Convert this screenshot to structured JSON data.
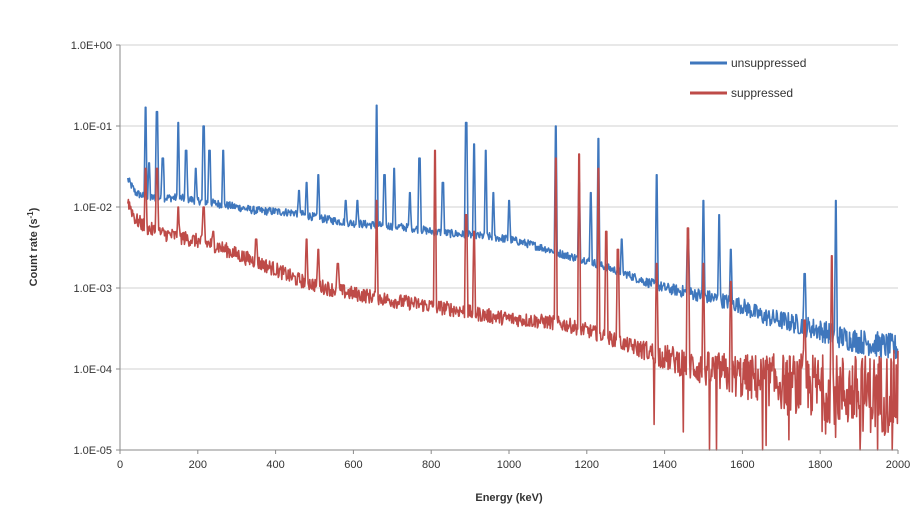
{
  "chart_data": {
    "type": "line",
    "title": "",
    "xlabel": "Energy (keV)",
    "ylabel_main": "Count rate (s",
    "ylabel_exp": "-1",
    "ylabel_close": ")",
    "xlim": [
      0,
      2000
    ],
    "ylim": [
      1e-05,
      1
    ],
    "yscale": "log",
    "grid": "horizontal",
    "legend_position": "top-right",
    "x_ticks": [
      0,
      200,
      400,
      600,
      800,
      1000,
      1200,
      1400,
      1600,
      1800,
      2000
    ],
    "x_tick_labels": [
      "0",
      "200",
      "400",
      "600",
      "800",
      "1000",
      "1200",
      "1400",
      "1600",
      "1800",
      "2000"
    ],
    "y_ticks": [
      1,
      0.1,
      0.01,
      0.001,
      0.0001,
      1e-05
    ],
    "y_tick_labels": [
      "1.0E+00",
      "1.0E-01",
      "1.0E-02",
      "1.0E-03",
      "1.0E-04",
      "1.0E-05"
    ],
    "series": [
      {
        "name": "unsuppressed",
        "color": "#3f77bd",
        "baseline": [
          [
            20,
            0.022
          ],
          [
            40,
            0.015
          ],
          [
            70,
            0.013
          ],
          [
            100,
            0.013
          ],
          [
            150,
            0.013
          ],
          [
            200,
            0.012
          ],
          [
            250,
            0.011
          ],
          [
            300,
            0.01
          ],
          [
            350,
            0.009
          ],
          [
            400,
            0.0088
          ],
          [
            450,
            0.0085
          ],
          [
            500,
            0.0075
          ],
          [
            550,
            0.0068
          ],
          [
            600,
            0.0063
          ],
          [
            650,
            0.006
          ],
          [
            700,
            0.0058
          ],
          [
            750,
            0.0055
          ],
          [
            800,
            0.005
          ],
          [
            850,
            0.0047
          ],
          [
            900,
            0.0045
          ],
          [
            950,
            0.0043
          ],
          [
            1000,
            0.004
          ],
          [
            1050,
            0.0035
          ],
          [
            1100,
            0.003
          ],
          [
            1150,
            0.0025
          ],
          [
            1200,
            0.0022
          ],
          [
            1250,
            0.0018
          ],
          [
            1300,
            0.0015
          ],
          [
            1350,
            0.0012
          ],
          [
            1400,
            0.001
          ],
          [
            1450,
            0.0009
          ],
          [
            1500,
            0.0008
          ],
          [
            1550,
            0.0007
          ],
          [
            1600,
            0.0006
          ],
          [
            1650,
            0.00045
          ],
          [
            1700,
            0.0004
          ],
          [
            1750,
            0.00035
          ],
          [
            1800,
            0.0003
          ],
          [
            1850,
            0.00025
          ],
          [
            1900,
            0.00022
          ],
          [
            1950,
            0.0002
          ],
          [
            2000,
            0.00018
          ]
        ],
        "peaks": [
          [
            66,
            0.17
          ],
          [
            75,
            0.035
          ],
          [
            95,
            0.15
          ],
          [
            110,
            0.04
          ],
          [
            150,
            0.11
          ],
          [
            170,
            0.05
          ],
          [
            195,
            0.03
          ],
          [
            215,
            0.1
          ],
          [
            230,
            0.05
          ],
          [
            265,
            0.05
          ],
          [
            460,
            0.016
          ],
          [
            480,
            0.02
          ],
          [
            510,
            0.025
          ],
          [
            580,
            0.012
          ],
          [
            610,
            0.012
          ],
          [
            660,
            0.18
          ],
          [
            680,
            0.025
          ],
          [
            705,
            0.03
          ],
          [
            745,
            0.015
          ],
          [
            770,
            0.04
          ],
          [
            830,
            0.02
          ],
          [
            890,
            0.11
          ],
          [
            910,
            0.06
          ],
          [
            940,
            0.05
          ],
          [
            960,
            0.015
          ],
          [
            1000,
            0.012
          ],
          [
            1120,
            0.1
          ],
          [
            1180,
            0.02
          ],
          [
            1210,
            0.015
          ],
          [
            1230,
            0.07
          ],
          [
            1290,
            0.004
          ],
          [
            1380,
            0.025
          ],
          [
            1460,
            0.004
          ],
          [
            1500,
            0.012
          ],
          [
            1540,
            0.008
          ],
          [
            1570,
            0.003
          ],
          [
            1760,
            0.0015
          ],
          [
            1840,
            0.012
          ]
        ]
      },
      {
        "name": "suppressed",
        "color": "#be4b48",
        "baseline": [
          [
            20,
            0.012
          ],
          [
            40,
            0.007
          ],
          [
            70,
            0.0055
          ],
          [
            100,
            0.0048
          ],
          [
            150,
            0.0043
          ],
          [
            200,
            0.0038
          ],
          [
            250,
            0.0033
          ],
          [
            300,
            0.0026
          ],
          [
            350,
            0.0021
          ],
          [
            400,
            0.0017
          ],
          [
            450,
            0.0013
          ],
          [
            500,
            0.0011
          ],
          [
            550,
            0.00095
          ],
          [
            600,
            0.00085
          ],
          [
            650,
            0.00078
          ],
          [
            700,
            0.0007
          ],
          [
            750,
            0.00065
          ],
          [
            800,
            0.0006
          ],
          [
            850,
            0.00055
          ],
          [
            900,
            0.0005
          ],
          [
            950,
            0.00045
          ],
          [
            1000,
            0.00042
          ],
          [
            1050,
            0.0004
          ],
          [
            1100,
            0.00038
          ],
          [
            1150,
            0.00035
          ],
          [
            1200,
            0.0003
          ],
          [
            1250,
            0.00025
          ],
          [
            1300,
            0.0002
          ],
          [
            1350,
            0.00017
          ],
          [
            1400,
            0.00014
          ],
          [
            1450,
            0.00012
          ],
          [
            1500,
            0.0001
          ],
          [
            1550,
            9e-05
          ],
          [
            1600,
            8e-05
          ],
          [
            1650,
            7.5e-05
          ],
          [
            1700,
            7e-05
          ],
          [
            1750,
            6.5e-05
          ],
          [
            1800,
            6e-05
          ],
          [
            1850,
            5.5e-05
          ],
          [
            1900,
            5e-05
          ],
          [
            1950,
            5e-05
          ],
          [
            2000,
            5e-05
          ]
        ],
        "peaks": [
          [
            66,
            0.03
          ],
          [
            95,
            0.03
          ],
          [
            150,
            0.01
          ],
          [
            215,
            0.01
          ],
          [
            240,
            0.005
          ],
          [
            350,
            0.004
          ],
          [
            480,
            0.004
          ],
          [
            510,
            0.003
          ],
          [
            560,
            0.002
          ],
          [
            660,
            0.012
          ],
          [
            810,
            0.05
          ],
          [
            890,
            0.008
          ],
          [
            910,
            0.005
          ],
          [
            1120,
            0.04
          ],
          [
            1180,
            0.045
          ],
          [
            1230,
            0.03
          ],
          [
            1250,
            0.005
          ],
          [
            1280,
            0.003
          ],
          [
            1380,
            0.002
          ],
          [
            1460,
            0.0055
          ],
          [
            1500,
            0.002
          ],
          [
            1570,
            0.0012
          ],
          [
            1760,
            0.0004
          ],
          [
            1830,
            0.0025
          ]
        ]
      }
    ]
  }
}
